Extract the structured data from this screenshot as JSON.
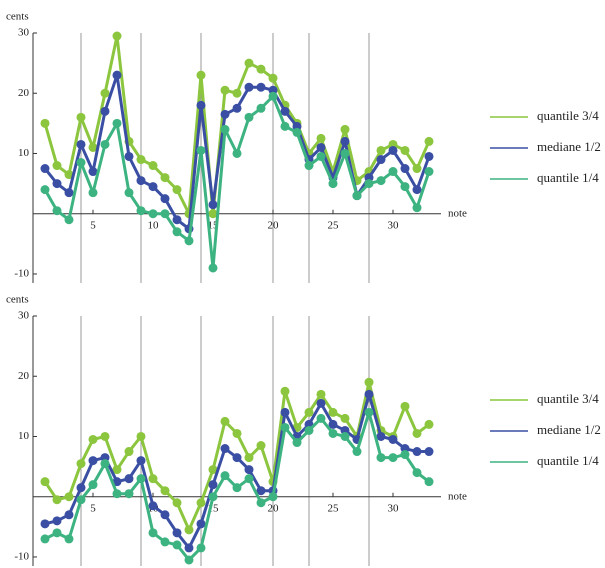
{
  "chart_data": [
    {
      "type": "line",
      "xlabel": "note",
      "ylabel": "cents",
      "x": [
        1,
        2,
        3,
        4,
        5,
        6,
        7,
        8,
        9,
        10,
        11,
        12,
        13,
        14,
        15,
        16,
        17,
        18,
        19,
        20,
        21,
        22,
        23,
        24,
        25,
        26,
        27,
        28,
        29,
        30,
        31,
        32,
        33
      ],
      "xlim": [
        0,
        34
      ],
      "ylim": [
        -11.5,
        30
      ],
      "xticks": [
        5,
        10,
        15,
        20,
        25,
        30
      ],
      "yticks": [
        -10,
        10,
        20,
        30
      ],
      "xgrid": [
        4,
        9,
        14,
        20,
        23,
        28
      ],
      "series": [
        {
          "name": "quantile 3/4",
          "color": "#8cc63e",
          "values": [
            15,
            8,
            6.5,
            16,
            11,
            20,
            29.5,
            12,
            9,
            8,
            6,
            4,
            0,
            23,
            0,
            20.5,
            20,
            25,
            24,
            22.5,
            18,
            15,
            10,
            12.5,
            7,
            14,
            5.5,
            7,
            10.5,
            11.5,
            10.5,
            7.5,
            12
          ]
        },
        {
          "name": "mediane 1/2",
          "color": "#3a4fa3",
          "values": [
            7.5,
            5,
            3.5,
            11.5,
            7,
            17,
            23,
            9.5,
            5.5,
            4.5,
            2.5,
            -1,
            -2.5,
            18,
            1.5,
            16.5,
            17.5,
            21,
            21,
            20.5,
            17,
            14.5,
            9,
            11,
            6,
            12,
            3,
            6,
            9,
            10.5,
            7.5,
            4,
            9.5
          ]
        },
        {
          "name": "quantile 1/4",
          "color": "#3db381",
          "values": [
            4,
            0.5,
            -1,
            8.5,
            3.5,
            11.5,
            15,
            3.5,
            0.5,
            0,
            0,
            -3,
            -4.5,
            10.5,
            -9,
            14,
            10,
            16,
            17.5,
            19.5,
            14.5,
            13.5,
            8,
            9.5,
            5,
            10,
            3,
            5,
            5.5,
            7,
            4.5,
            1,
            7
          ]
        }
      ]
    },
    {
      "type": "line",
      "xlabel": "note",
      "ylabel": "cents",
      "x": [
        1,
        2,
        3,
        4,
        5,
        6,
        7,
        8,
        9,
        10,
        11,
        12,
        13,
        14,
        15,
        16,
        17,
        18,
        19,
        20,
        21,
        22,
        23,
        24,
        25,
        26,
        27,
        28,
        29,
        30,
        31,
        32,
        33
      ],
      "xlim": [
        0,
        34
      ],
      "ylim": [
        -11.5,
        30
      ],
      "xticks": [
        5,
        10,
        15,
        20,
        25,
        30
      ],
      "yticks": [
        -10,
        10,
        20,
        30
      ],
      "xgrid": [
        4,
        9,
        14,
        20,
        23,
        28
      ],
      "series": [
        {
          "name": "quantile 3/4",
          "color": "#8cc63e",
          "values": [
            2.5,
            -0.5,
            0,
            5.5,
            9.5,
            10,
            4.5,
            7.5,
            10,
            3,
            1,
            -1,
            -5.5,
            -1,
            4.5,
            12.5,
            10.5,
            6.5,
            8.5,
            2.5,
            17.5,
            11.5,
            14,
            17,
            14,
            13,
            10,
            19,
            11,
            10,
            15,
            10.5,
            12
          ]
        },
        {
          "name": "mediane 1/2",
          "color": "#3a4fa3",
          "values": [
            -4.5,
            -4,
            -3,
            1.5,
            6,
            6.5,
            2.5,
            3,
            6,
            -1.5,
            -3,
            -6,
            -8.5,
            -4.5,
            2,
            8,
            6.5,
            4.5,
            1,
            1,
            14,
            10,
            12,
            15.5,
            12,
            11,
            9.5,
            17,
            10,
            9.5,
            8,
            7.5,
            7.5
          ]
        },
        {
          "name": "quantile 1/4",
          "color": "#3db381",
          "values": [
            -7,
            -6,
            -7,
            -0.5,
            2,
            5.5,
            0.5,
            0.5,
            3,
            -6,
            -7.5,
            -8,
            -10.5,
            -8.5,
            0,
            3.5,
            1.5,
            3,
            -1,
            0,
            11.5,
            9,
            11,
            13,
            10.5,
            10,
            7.5,
            14,
            6.5,
            6.5,
            7,
            4,
            2.5
          ]
        }
      ]
    }
  ]
}
